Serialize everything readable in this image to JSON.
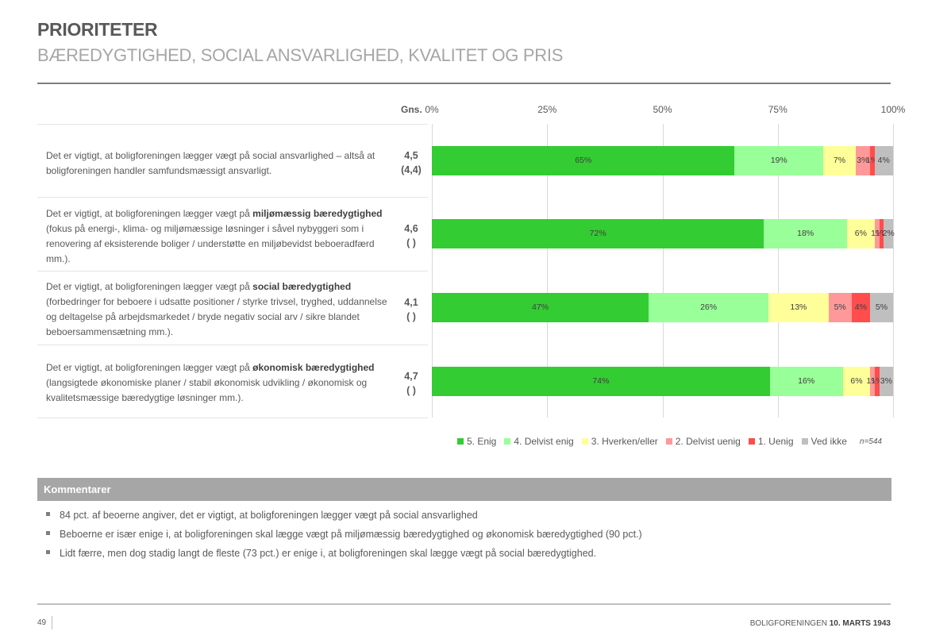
{
  "header": {
    "title": "PRIORITETER",
    "subtitle": "BÆREDYGTIGHED, SOCIAL ANSVARLIGHED, KVALITET OG PRIS"
  },
  "table": {
    "avg_header": "Gns.",
    "questions": [
      {
        "text_before": "Det er vigtigt, at boligforeningen lægger vægt på social ansvarlighed – altså at boligforeningen handler samfundsmæssigt ansvarligt.",
        "text_bold": "",
        "text_after": "",
        "avg": "4,5",
        "avg_prev": "(4,4)"
      },
      {
        "text_before": "Det er vigtigt, at boligforeningen lægger vægt på ",
        "text_bold": "miljømæssig bæredygtighed",
        "text_after": " (fokus på energi-, klima- og miljømæssige løsninger i såvel nybyggeri som i renovering af eksisterende boliger / understøtte en miljøbevidst beboeradfærd mm.).",
        "avg": "4,6",
        "avg_prev": "(  )"
      },
      {
        "text_before": "Det er vigtigt, at boligforeningen lægger vægt på ",
        "text_bold": "social bæredygtighed",
        "text_after": " (forbedringer for beboere i udsatte positioner / styrke trivsel, tryghed, uddannelse og deltagelse på arbejdsmarkedet / bryde negativ social arv / sikre blandet beboersammensætning mm.).",
        "avg": "4,1",
        "avg_prev": "(  )"
      },
      {
        "text_before": "Det er vigtigt, at boligforeningen lægger vægt på ",
        "text_bold": "økonomisk bæredygtighed",
        "text_after": " (langsigtede økonomiske planer / stabil økonomisk udvikling / økonomisk og kvalitetsmæssige bæredygtige løsninger mm.).",
        "avg": "4,7",
        "avg_prev": "(  )"
      }
    ]
  },
  "chart_data": {
    "type": "bar",
    "orientation": "horizontal",
    "stacked": "100%",
    "title": "",
    "xlabel": "",
    "ylabel": "",
    "xlim": [
      0,
      100
    ],
    "x_ticks": [
      "0%",
      "25%",
      "50%",
      "75%",
      "100%"
    ],
    "x_tick_values": [
      0,
      25,
      50,
      75,
      100
    ],
    "grid": true,
    "legend_position": "bottom",
    "categories": [
      "Social ansvarlighed",
      "Miljømæssig bæredygtighed",
      "Social bæredygtighed",
      "Økonomisk bæredygtighed"
    ],
    "series": [
      {
        "name": "5. Enig",
        "color": "#33cc33",
        "values": [
          65,
          72,
          47,
          74
        ]
      },
      {
        "name": "4. Delvist enig",
        "color": "#99ff99",
        "values": [
          19,
          18,
          26,
          16
        ]
      },
      {
        "name": "3. Hverken/eller",
        "color": "#ffff99",
        "values": [
          7,
          6,
          13,
          6
        ]
      },
      {
        "name": "2. Delvist uenig",
        "color": "#ff9999",
        "values": [
          3,
          1,
          5,
          1
        ]
      },
      {
        "name": "1. Uenig",
        "color": "#ff4d4d",
        "values": [
          1,
          1,
          4,
          1
        ]
      },
      {
        "name": "Ved ikke",
        "color": "#bfbfbf",
        "values": [
          4,
          2,
          5,
          3
        ]
      }
    ],
    "annotation": "n=544"
  },
  "comments": {
    "header": "Kommentarer",
    "items": [
      "84 pct. af beoerne angiver, det er vigtigt, at boligforeningen lægger vægt på social ansvarlighed",
      "Beboerne er især enige i, at boligforeningen skal lægge vægt på miljømæssig bæredygtighed og økonomisk bæredygtighed (90 pct.)",
      "Lidt færre, men dog stadig langt de fleste (73 pct.) er enige i, at boligforeningen skal lægge vægt på social bæredygtighed."
    ]
  },
  "footer": {
    "page_number": "49",
    "org": "BOLIGFORENINGEN ",
    "date": "10. MARTS 1943"
  }
}
